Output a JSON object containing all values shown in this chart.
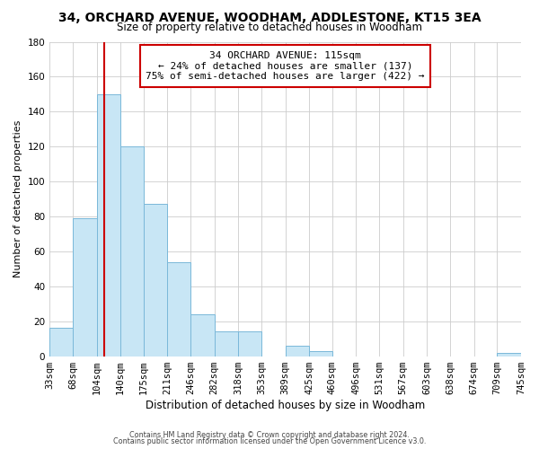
{
  "title": "34, ORCHARD AVENUE, WOODHAM, ADDLESTONE, KT15 3EA",
  "subtitle": "Size of property relative to detached houses in Woodham",
  "xlabel": "Distribution of detached houses by size in Woodham",
  "ylabel": "Number of detached properties",
  "bar_edges": [
    33,
    68,
    104,
    140,
    175,
    211,
    246,
    282,
    318,
    353,
    389,
    425,
    460,
    496,
    531,
    567,
    603,
    638,
    674,
    709,
    745
  ],
  "bar_heights": [
    16,
    79,
    150,
    120,
    87,
    54,
    24,
    14,
    14,
    0,
    6,
    3,
    0,
    0,
    0,
    0,
    0,
    0,
    0,
    2
  ],
  "bar_color": "#c8e6f5",
  "bar_edge_color": "#7ab8d9",
  "property_line_x": 115,
  "property_line_color": "#cc0000",
  "ylim": [
    0,
    180
  ],
  "yticks": [
    0,
    20,
    40,
    60,
    80,
    100,
    120,
    140,
    160,
    180
  ],
  "xtick_labels": [
    "33sqm",
    "68sqm",
    "104sqm",
    "140sqm",
    "175sqm",
    "211sqm",
    "246sqm",
    "282sqm",
    "318sqm",
    "353sqm",
    "389sqm",
    "425sqm",
    "460sqm",
    "496sqm",
    "531sqm",
    "567sqm",
    "603sqm",
    "638sqm",
    "674sqm",
    "709sqm",
    "745sqm"
  ],
  "annotation_line1": "34 ORCHARD AVENUE: 115sqm",
  "annotation_line2": "← 24% of detached houses are smaller (137)",
  "annotation_line3": "75% of semi-detached houses are larger (422) →",
  "footer_line1": "Contains HM Land Registry data © Crown copyright and database right 2024.",
  "footer_line2": "Contains public sector information licensed under the Open Government Licence v3.0.",
  "background_color": "#ffffff",
  "grid_color": "#cccccc"
}
